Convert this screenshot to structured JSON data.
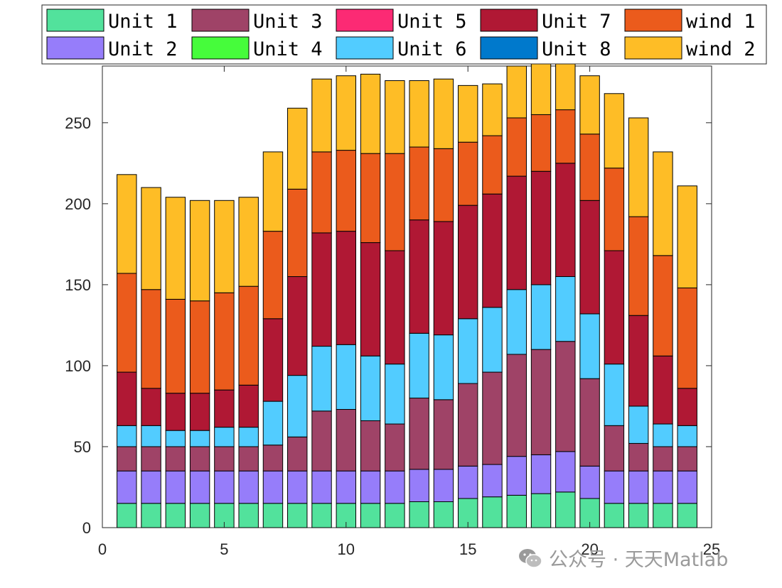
{
  "chart_data": {
    "type": "stacked-bar",
    "title": "",
    "xlabel": "",
    "ylabel": "",
    "xlim": [
      0,
      25
    ],
    "ylim": [
      0,
      285
    ],
    "xticks": [
      0,
      5,
      10,
      15,
      20,
      25
    ],
    "yticks": [
      0,
      50,
      100,
      150,
      200,
      250
    ],
    "legend_position": "top",
    "categories": [
      1,
      2,
      3,
      4,
      5,
      6,
      7,
      8,
      9,
      10,
      11,
      12,
      13,
      14,
      15,
      16,
      17,
      18,
      19,
      20,
      21,
      22,
      23,
      24
    ],
    "series": [
      {
        "name": "Unit 1",
        "color": "#52e29c",
        "values": [
          15,
          15,
          15,
          15,
          15,
          15,
          15,
          15,
          15,
          15,
          15,
          15,
          16,
          16,
          18,
          19,
          20,
          21,
          22,
          18,
          15,
          15,
          15,
          15
        ]
      },
      {
        "name": "Unit 2",
        "color": "#967dfa",
        "values": [
          20,
          20,
          20,
          20,
          20,
          20,
          20,
          20,
          20,
          20,
          20,
          20,
          20,
          20,
          20,
          20,
          24,
          24,
          25,
          20,
          20,
          20,
          20,
          20
        ]
      },
      {
        "name": "Unit 3",
        "color": "#9f4367",
        "values": [
          15,
          15,
          15,
          15,
          15,
          15,
          16,
          21,
          37,
          38,
          31,
          29,
          44,
          43,
          51,
          57,
          63,
          65,
          68,
          54,
          28,
          17,
          15,
          15
        ]
      },
      {
        "name": "Unit 4",
        "color": "#46fc3b",
        "values": [
          0,
          0,
          0,
          0,
          0,
          0,
          0,
          0,
          0,
          0,
          0,
          0,
          0,
          0,
          0,
          0,
          0,
          0,
          0,
          0,
          0,
          0,
          0,
          0
        ]
      },
      {
        "name": "Unit 5",
        "color": "#fc2a74",
        "values": [
          0,
          0,
          0,
          0,
          0,
          0,
          0,
          0,
          0,
          0,
          0,
          0,
          0,
          0,
          0,
          0,
          0,
          0,
          0,
          0,
          0,
          0,
          0,
          0
        ]
      },
      {
        "name": "Unit 6",
        "color": "#52ccff",
        "values": [
          13,
          13,
          10,
          10,
          12,
          12,
          27,
          38,
          40,
          40,
          40,
          37,
          40,
          40,
          40,
          40,
          40,
          40,
          40,
          40,
          38,
          23,
          14,
          13
        ]
      },
      {
        "name": "Unit 7",
        "color": "#b01834",
        "values": [
          33,
          23,
          23,
          23,
          23,
          26,
          51,
          61,
          70,
          70,
          70,
          70,
          70,
          70,
          70,
          70,
          70,
          70,
          70,
          70,
          70,
          56,
          42,
          23
        ]
      },
      {
        "name": "Unit 8",
        "color": "#0079cc",
        "values": [
          0,
          0,
          0,
          0,
          0,
          0,
          0,
          0,
          0,
          0,
          0,
          0,
          0,
          0,
          0,
          0,
          0,
          0,
          0,
          0,
          0,
          0,
          0,
          0
        ]
      },
      {
        "name": "wind 1",
        "color": "#eb5b1c",
        "values": [
          61,
          61,
          58,
          57,
          60,
          61,
          54,
          54,
          50,
          50,
          55,
          60,
          45,
          45,
          39,
          36,
          36,
          35,
          33,
          41,
          51,
          61,
          62,
          62
        ]
      },
      {
        "name": "wind 2",
        "color": "#febd26",
        "values": [
          61,
          63,
          63,
          62,
          57,
          55,
          49,
          50,
          45,
          46,
          49,
          45,
          41,
          43,
          35,
          32,
          32,
          33,
          33,
          36,
          46,
          61,
          64,
          63
        ]
      }
    ]
  },
  "watermark": {
    "text": "公众号 · 天天Matlab",
    "icon": "wechat-icon"
  }
}
